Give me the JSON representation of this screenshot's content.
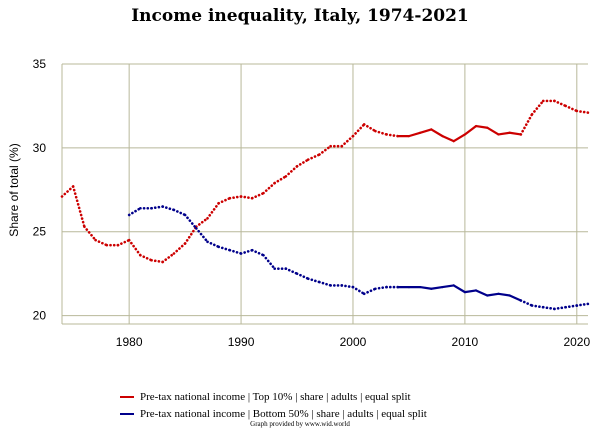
{
  "chart_data": {
    "type": "line",
    "title": "Income inequality, Italy, 1974-2021",
    "ylabel": "Share of total (%)",
    "xlabel": "",
    "xlim": [
      1974,
      2021
    ],
    "ylim": [
      19.5,
      35
    ],
    "x_ticks": [
      1980,
      1990,
      2000,
      2010,
      2020
    ],
    "y_ticks": [
      20,
      25,
      30,
      35
    ],
    "grid": true,
    "legend_position": "bottom",
    "series": [
      {
        "name": "Pre-tax national income | Top 10% | share | adults | equal split",
        "color": "#cc0000",
        "points": [
          {
            "x": 1974,
            "y": 27.1,
            "style": "dotted"
          },
          {
            "x": 1975,
            "y": 27.7,
            "style": "dotted"
          },
          {
            "x": 1976,
            "y": 25.3,
            "style": "dotted"
          },
          {
            "x": 1977,
            "y": 24.5,
            "style": "dotted"
          },
          {
            "x": 1978,
            "y": 24.2,
            "style": "dotted"
          },
          {
            "x": 1979,
            "y": 24.2,
            "style": "dotted"
          },
          {
            "x": 1980,
            "y": 24.5,
            "style": "dotted"
          },
          {
            "x": 1981,
            "y": 23.6,
            "style": "dotted"
          },
          {
            "x": 1982,
            "y": 23.3,
            "style": "dotted"
          },
          {
            "x": 1983,
            "y": 23.2,
            "style": "dotted"
          },
          {
            "x": 1984,
            "y": 23.7,
            "style": "dotted"
          },
          {
            "x": 1985,
            "y": 24.3,
            "style": "dotted"
          },
          {
            "x": 1986,
            "y": 25.3,
            "style": "dotted"
          },
          {
            "x": 1987,
            "y": 25.8,
            "style": "dotted"
          },
          {
            "x": 1988,
            "y": 26.7,
            "style": "dotted"
          },
          {
            "x": 1989,
            "y": 27.0,
            "style": "dotted"
          },
          {
            "x": 1990,
            "y": 27.1,
            "style": "dotted"
          },
          {
            "x": 1991,
            "y": 27.0,
            "style": "dotted"
          },
          {
            "x": 1992,
            "y": 27.3,
            "style": "dotted"
          },
          {
            "x": 1993,
            "y": 27.9,
            "style": "dotted"
          },
          {
            "x": 1994,
            "y": 28.3,
            "style": "dotted"
          },
          {
            "x": 1995,
            "y": 28.9,
            "style": "dotted"
          },
          {
            "x": 1996,
            "y": 29.3,
            "style": "dotted"
          },
          {
            "x": 1997,
            "y": 29.6,
            "style": "dotted"
          },
          {
            "x": 1998,
            "y": 30.1,
            "style": "dotted"
          },
          {
            "x": 1999,
            "y": 30.1,
            "style": "dotted"
          },
          {
            "x": 2000,
            "y": 30.7,
            "style": "dotted"
          },
          {
            "x": 2001,
            "y": 31.4,
            "style": "dotted"
          },
          {
            "x": 2002,
            "y": 31.0,
            "style": "dotted"
          },
          {
            "x": 2003,
            "y": 30.8,
            "style": "dotted"
          },
          {
            "x": 2004,
            "y": 30.7,
            "style": "solid"
          },
          {
            "x": 2005,
            "y": 30.7,
            "style": "solid"
          },
          {
            "x": 2006,
            "y": 30.9,
            "style": "solid"
          },
          {
            "x": 2007,
            "y": 31.1,
            "style": "solid"
          },
          {
            "x": 2008,
            "y": 30.7,
            "style": "solid"
          },
          {
            "x": 2009,
            "y": 30.4,
            "style": "solid"
          },
          {
            "x": 2010,
            "y": 30.8,
            "style": "solid"
          },
          {
            "x": 2011,
            "y": 31.3,
            "style": "solid"
          },
          {
            "x": 2012,
            "y": 31.2,
            "style": "solid"
          },
          {
            "x": 2013,
            "y": 30.8,
            "style": "solid"
          },
          {
            "x": 2014,
            "y": 30.9,
            "style": "solid"
          },
          {
            "x": 2015,
            "y": 30.8,
            "style": "solid"
          },
          {
            "x": 2016,
            "y": 32.0,
            "style": "dotted"
          },
          {
            "x": 2017,
            "y": 32.8,
            "style": "dotted"
          },
          {
            "x": 2018,
            "y": 32.8,
            "style": "dotted"
          },
          {
            "x": 2019,
            "y": 32.5,
            "style": "dotted"
          },
          {
            "x": 2020,
            "y": 32.2,
            "style": "dotted"
          },
          {
            "x": 2021,
            "y": 32.1,
            "style": "dotted"
          }
        ]
      },
      {
        "name": "Pre-tax national income | Bottom 50% | share | adults | equal split",
        "color": "#00008b",
        "points": [
          {
            "x": 1980,
            "y": 26.0,
            "style": "dotted"
          },
          {
            "x": 1981,
            "y": 26.4,
            "style": "dotted"
          },
          {
            "x": 1982,
            "y": 26.4,
            "style": "dotted"
          },
          {
            "x": 1983,
            "y": 26.5,
            "style": "dotted"
          },
          {
            "x": 1984,
            "y": 26.3,
            "style": "dotted"
          },
          {
            "x": 1985,
            "y": 26.0,
            "style": "dotted"
          },
          {
            "x": 1986,
            "y": 25.2,
            "style": "dotted"
          },
          {
            "x": 1987,
            "y": 24.4,
            "style": "dotted"
          },
          {
            "x": 1988,
            "y": 24.1,
            "style": "dotted"
          },
          {
            "x": 1989,
            "y": 23.9,
            "style": "dotted"
          },
          {
            "x": 1990,
            "y": 23.7,
            "style": "dotted"
          },
          {
            "x": 1991,
            "y": 23.9,
            "style": "dotted"
          },
          {
            "x": 1992,
            "y": 23.6,
            "style": "dotted"
          },
          {
            "x": 1993,
            "y": 22.8,
            "style": "dotted"
          },
          {
            "x": 1994,
            "y": 22.8,
            "style": "dotted"
          },
          {
            "x": 1995,
            "y": 22.5,
            "style": "dotted"
          },
          {
            "x": 1996,
            "y": 22.2,
            "style": "dotted"
          },
          {
            "x": 1997,
            "y": 22.0,
            "style": "dotted"
          },
          {
            "x": 1998,
            "y": 21.8,
            "style": "dotted"
          },
          {
            "x": 1999,
            "y": 21.8,
            "style": "dotted"
          },
          {
            "x": 2000,
            "y": 21.7,
            "style": "dotted"
          },
          {
            "x": 2001,
            "y": 21.3,
            "style": "dotted"
          },
          {
            "x": 2002,
            "y": 21.6,
            "style": "dotted"
          },
          {
            "x": 2003,
            "y": 21.7,
            "style": "dotted"
          },
          {
            "x": 2004,
            "y": 21.7,
            "style": "solid"
          },
          {
            "x": 2005,
            "y": 21.7,
            "style": "solid"
          },
          {
            "x": 2006,
            "y": 21.7,
            "style": "solid"
          },
          {
            "x": 2007,
            "y": 21.6,
            "style": "solid"
          },
          {
            "x": 2008,
            "y": 21.7,
            "style": "solid"
          },
          {
            "x": 2009,
            "y": 21.8,
            "style": "solid"
          },
          {
            "x": 2010,
            "y": 21.4,
            "style": "solid"
          },
          {
            "x": 2011,
            "y": 21.5,
            "style": "solid"
          },
          {
            "x": 2012,
            "y": 21.2,
            "style": "solid"
          },
          {
            "x": 2013,
            "y": 21.3,
            "style": "solid"
          },
          {
            "x": 2014,
            "y": 21.2,
            "style": "solid"
          },
          {
            "x": 2015,
            "y": 20.9,
            "style": "solid"
          },
          {
            "x": 2016,
            "y": 20.6,
            "style": "dotted"
          },
          {
            "x": 2017,
            "y": 20.5,
            "style": "dotted"
          },
          {
            "x": 2018,
            "y": 20.4,
            "style": "dotted"
          },
          {
            "x": 2019,
            "y": 20.5,
            "style": "dotted"
          },
          {
            "x": 2020,
            "y": 20.6,
            "style": "dotted"
          },
          {
            "x": 2021,
            "y": 20.7,
            "style": "dotted"
          }
        ]
      }
    ],
    "credit": "Graph provided by www.wid.world"
  }
}
